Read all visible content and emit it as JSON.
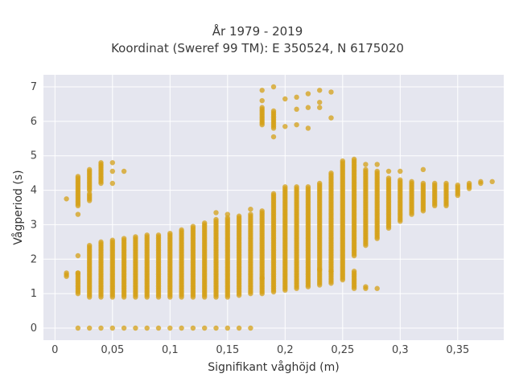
{
  "chart_data": {
    "type": "scatter",
    "title_lines": [
      "År 1979 - 2019",
      "Koordinat (Sweref 99 TM): E 350524, N 6175020"
    ],
    "xlabel": "Signifikant våghöjd (m)",
    "ylabel": "Vågperiod (s)",
    "xlim": [
      -0.01,
      0.39
    ],
    "ylim": [
      -0.35,
      7.35
    ],
    "x_ticks": [
      0,
      0.05,
      0.1,
      0.15,
      0.2,
      0.25,
      0.3,
      0.35
    ],
    "x_tick_labels": [
      "0",
      "0,05",
      "0,1",
      "0,15",
      "0,2",
      "0,25",
      "0,3",
      "0,35"
    ],
    "y_ticks": [
      0,
      1,
      2,
      3,
      4,
      5,
      6,
      7
    ],
    "y_tick_labels": [
      "0",
      "1",
      "2",
      "3",
      "4",
      "5",
      "6",
      "7"
    ],
    "grid": true,
    "background": "#e5e6ef",
    "marker_color": "#d4a017",
    "columns": [
      {
        "x": 0.01,
        "ranges": [
          [
            1.5,
            1.6
          ]
        ],
        "extra": [
          3.75
        ]
      },
      {
        "x": 0.02,
        "ranges": [
          [
            3.55,
            4.4
          ],
          [
            1.0,
            1.6
          ]
        ],
        "extra": [
          0,
          2.1,
          3.3,
          1.6
        ]
      },
      {
        "x": 0.03,
        "ranges": [
          [
            0.9,
            2.4
          ],
          [
            4.0,
            4.6
          ],
          [
            3.7,
            3.9
          ]
        ],
        "extra": [
          0
        ]
      },
      {
        "x": 0.04,
        "ranges": [
          [
            0.9,
            2.5
          ],
          [
            4.2,
            4.8
          ]
        ],
        "extra": [
          0
        ]
      },
      {
        "x": 0.05,
        "ranges": [
          [
            0.9,
            2.55
          ]
        ],
        "extra": [
          0,
          4.2,
          4.55,
          4.8
        ]
      },
      {
        "x": 0.06,
        "ranges": [
          [
            0.9,
            2.6
          ]
        ],
        "extra": [
          0,
          4.55
        ]
      },
      {
        "x": 0.07,
        "ranges": [
          [
            0.9,
            2.65
          ]
        ],
        "extra": [
          0
        ]
      },
      {
        "x": 0.08,
        "ranges": [
          [
            0.9,
            2.7
          ]
        ],
        "extra": [
          0
        ]
      },
      {
        "x": 0.09,
        "ranges": [
          [
            0.9,
            2.7
          ]
        ],
        "extra": [
          0
        ]
      },
      {
        "x": 0.1,
        "ranges": [
          [
            0.9,
            2.75
          ]
        ],
        "extra": [
          0
        ]
      },
      {
        "x": 0.11,
        "ranges": [
          [
            0.9,
            2.85
          ]
        ],
        "extra": [
          0
        ]
      },
      {
        "x": 0.12,
        "ranges": [
          [
            0.9,
            2.95
          ]
        ],
        "extra": [
          0
        ]
      },
      {
        "x": 0.13,
        "ranges": [
          [
            0.9,
            3.05
          ]
        ],
        "extra": [
          0
        ]
      },
      {
        "x": 0.14,
        "ranges": [
          [
            0.9,
            3.15
          ]
        ],
        "extra": [
          0,
          3.35
        ]
      },
      {
        "x": 0.15,
        "ranges": [
          [
            0.9,
            3.2
          ]
        ],
        "extra": [
          0,
          3.3
        ]
      },
      {
        "x": 0.16,
        "ranges": [
          [
            0.95,
            3.25
          ]
        ],
        "extra": [
          0
        ]
      },
      {
        "x": 0.17,
        "ranges": [
          [
            1.0,
            3.3
          ]
        ],
        "extra": [
          0,
          3.45
        ]
      },
      {
        "x": 0.18,
        "ranges": [
          [
            1.0,
            3.4
          ],
          [
            5.9,
            6.4
          ]
        ],
        "extra": [
          1.45,
          6.6,
          6.9
        ]
      },
      {
        "x": 0.19,
        "ranges": [
          [
            1.05,
            3.9
          ],
          [
            5.8,
            6.3
          ]
        ],
        "extra": [
          5.55,
          7.0
        ]
      },
      {
        "x": 0.2,
        "ranges": [
          [
            1.1,
            4.1
          ]
        ],
        "extra": [
          5.85,
          6.65
        ]
      },
      {
        "x": 0.21,
        "ranges": [
          [
            1.15,
            4.1
          ]
        ],
        "extra": [
          5.9,
          6.7,
          6.35
        ]
      },
      {
        "x": 0.22,
        "ranges": [
          [
            1.2,
            4.1
          ]
        ],
        "extra": [
          6.4,
          6.8,
          5.8
        ]
      },
      {
        "x": 0.23,
        "ranges": [
          [
            1.25,
            4.2
          ]
        ],
        "extra": [
          6.4,
          6.55,
          6.9,
          1.7
        ]
      },
      {
        "x": 0.24,
        "ranges": [
          [
            1.3,
            4.5
          ]
        ],
        "extra": [
          6.85,
          6.1,
          1.65
        ]
      },
      {
        "x": 0.25,
        "ranges": [
          [
            1.4,
            4.85
          ]
        ],
        "extra": []
      },
      {
        "x": 0.26,
        "ranges": [
          [
            2.1,
            4.85
          ],
          [
            1.15,
            1.6
          ]
        ],
        "extra": [
          4.9,
          1.65
        ]
      },
      {
        "x": 0.27,
        "ranges": [
          [
            2.4,
            4.6
          ],
          [
            1.15,
            1.2
          ]
        ],
        "extra": [
          4.75
        ]
      },
      {
        "x": 0.28,
        "ranges": [
          [
            2.6,
            4.5
          ]
        ],
        "extra": [
          1.15,
          4.75,
          4.55
        ]
      },
      {
        "x": 0.29,
        "ranges": [
          [
            2.9,
            4.35
          ]
        ],
        "extra": [
          4.55
        ]
      },
      {
        "x": 0.3,
        "ranges": [
          [
            3.1,
            4.3
          ]
        ],
        "extra": [
          4.55
        ]
      },
      {
        "x": 0.31,
        "ranges": [
          [
            3.3,
            4.25
          ]
        ],
        "extra": []
      },
      {
        "x": 0.32,
        "ranges": [
          [
            3.4,
            4.2
          ]
        ],
        "extra": [
          4.6
        ]
      },
      {
        "x": 0.33,
        "ranges": [
          [
            3.55,
            4.2
          ]
        ],
        "extra": []
      },
      {
        "x": 0.34,
        "ranges": [
          [
            3.6,
            4.2
          ]
        ],
        "extra": [
          3.55
        ]
      },
      {
        "x": 0.35,
        "ranges": [
          [
            3.85,
            4.15
          ]
        ],
        "extra": []
      },
      {
        "x": 0.36,
        "ranges": [
          [
            4.05,
            4.2
          ]
        ],
        "extra": []
      },
      {
        "x": 0.37,
        "ranges": [
          [
            4.2,
            4.25
          ]
        ],
        "extra": []
      },
      {
        "x": 0.38,
        "ranges": [
          [
            4.25,
            4.25
          ]
        ],
        "extra": []
      }
    ]
  }
}
